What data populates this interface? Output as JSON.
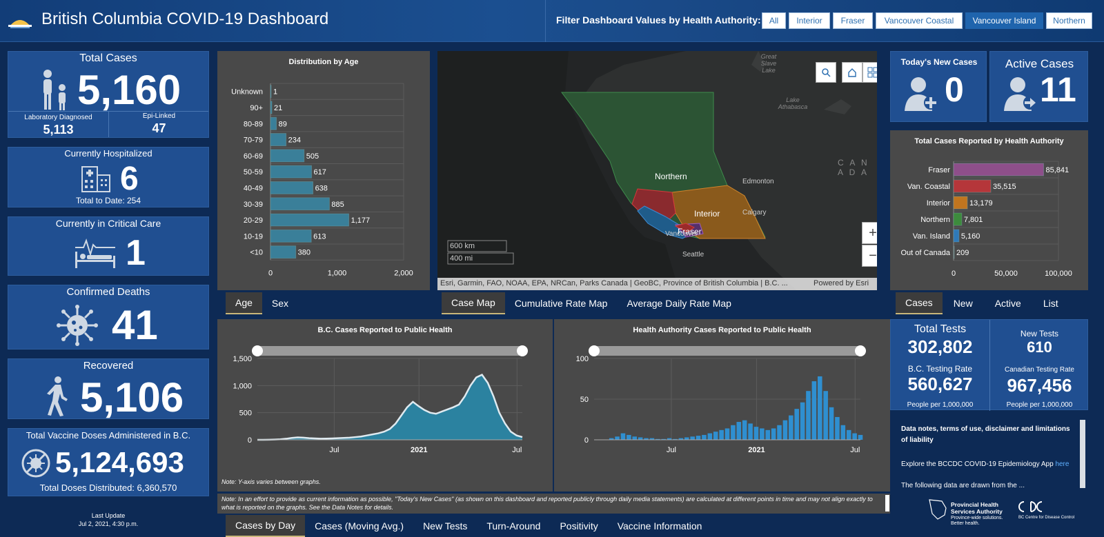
{
  "header": {
    "title": "British Columbia COVID-19 Dashboard",
    "filter_label": "Filter Dashboard Values by Health Authority:",
    "filters": [
      {
        "label": "All",
        "active": false
      },
      {
        "label": "Interior",
        "active": false
      },
      {
        "label": "Fraser",
        "active": false
      },
      {
        "label": "Vancouver Coastal",
        "active": false
      },
      {
        "label": "Vancouver Island",
        "active": true
      },
      {
        "label": "Northern",
        "active": false
      }
    ]
  },
  "left": {
    "total_cases": {
      "title": "Total Cases",
      "value": "5,160",
      "lab_label": "Laboratory Diagnosed",
      "lab_value": "5,113",
      "epi_label": "Epi-Linked",
      "epi_value": "47"
    },
    "hospitalized": {
      "title": "Currently Hospitalized",
      "value": "6",
      "sub": "Total to Date: 254"
    },
    "critical": {
      "title": "Currently in Critical Care",
      "value": "1"
    },
    "deaths": {
      "title": "Confirmed Deaths",
      "value": "41"
    },
    "recovered": {
      "title": "Recovered",
      "value": "5,106"
    },
    "vaccine": {
      "title": "Total Vaccine Doses Administered in B.C.",
      "value": "5,124,693",
      "sub": "Total Doses Distributed: 6,360,570"
    },
    "last_update_label": "Last Update",
    "last_update_value": "Jul 2, 2021, 4:30 p.m."
  },
  "age_chart": {
    "title": "Distribution by Age",
    "tabs": [
      "Age",
      "Sex"
    ],
    "active_tab": 0,
    "chart_data": {
      "type": "bar",
      "orientation": "horizontal",
      "categories": [
        "Unknown",
        "90+",
        "80-89",
        "70-79",
        "60-69",
        "50-59",
        "40-49",
        "30-39",
        "20-29",
        "10-19",
        "<10"
      ],
      "values": [
        1,
        21,
        89,
        234,
        505,
        617,
        638,
        885,
        1177,
        613,
        380
      ],
      "data_labels": [
        "1",
        "21",
        "89",
        "234",
        "505",
        "617",
        "638",
        "885",
        "1,177",
        "613",
        "380"
      ],
      "xlim": [
        0,
        2000
      ],
      "xticks": [
        "0",
        "1,000",
        "2,000"
      ]
    }
  },
  "map": {
    "labels": {
      "northern": "Northern",
      "interior": "Interior",
      "fraser": "Fraser",
      "vancouver": "Vancouver",
      "edmonton": "Edmonton",
      "calgary": "Calgary",
      "seattle": "Seattle",
      "canada": "C A N A D A",
      "great_slave": "Great Slave Lake",
      "athabasca": "Lake Athabasca"
    },
    "scale_km": "600 km",
    "scale_mi": "400 mi",
    "attribution": "Esri, Garmin, FAO, NOAA, EPA, NRCan, Parks Canada | GeoBC, Province of British Columbia | B.C. ...",
    "powered": "Powered by Esri",
    "tabs": [
      "Case Map",
      "Cumulative Rate Map",
      "Average Daily Rate Map"
    ],
    "active_tab": 0
  },
  "right": {
    "new_cases": {
      "title": "Today's New Cases",
      "value": "0"
    },
    "active_cases": {
      "title": "Active Cases",
      "value": "11"
    },
    "ha_chart": {
      "title": "Total Cases Reported by Health Authority",
      "tabs": [
        "Cases",
        "New",
        "Active",
        "List"
      ],
      "active_tab": 0,
      "chart_data": {
        "type": "bar",
        "orientation": "horizontal",
        "categories": [
          "Fraser",
          "Van. Coastal",
          "Interior",
          "Northern",
          "Van. Island",
          "Out of Canada"
        ],
        "values": [
          85841,
          35515,
          13179,
          7801,
          5160,
          209
        ],
        "data_labels": [
          "85,841",
          "35,515",
          "13,179",
          "7,801",
          "5,160",
          "209"
        ],
        "colors": [
          "#8e4f8a",
          "#b5363a",
          "#c0751f",
          "#3d8b3d",
          "#2f79b8",
          "#777777"
        ],
        "xlim": [
          0,
          100000
        ],
        "xticks": [
          "0",
          "50,000",
          "100,000"
        ]
      }
    },
    "tests": {
      "total_label": "Total Tests",
      "total_value": "302,802",
      "new_label": "New Tests",
      "new_value": "610",
      "bc_rate_label": "B.C. Testing Rate",
      "bc_rate_value": "560,627",
      "bc_rate_sub": "People per 1,000,000",
      "ca_rate_label": "Canadian Testing Rate",
      "ca_rate_value": "967,456",
      "ca_rate_sub": "People per 1,000,000"
    },
    "notes": {
      "title": "Data notes, terms of use, disclaimer and limitations of liability",
      "explore": "Explore the BCCDC COVID-19 Epidemiology App ",
      "explore_link": "here",
      "more": "The following data are drawn from the ..."
    },
    "logos": {
      "phsa": "Provincial Health Services Authority",
      "phsa_tag": "Province-wide solutions. Better health.",
      "bccdc": "BC Centre for Disease Control"
    }
  },
  "bc_chart": {
    "title": "B.C. Cases Reported to Public Health",
    "chart_data": {
      "type": "area",
      "x_ticks": [
        "Jul",
        "2021",
        "Jul"
      ],
      "ylim": [
        0,
        1500
      ],
      "yticks": [
        "0",
        "500",
        "1,000",
        "1,500"
      ],
      "series": [
        {
          "values": [
            0,
            0,
            2,
            5,
            10,
            20,
            35,
            45,
            40,
            30,
            25,
            20,
            22,
            25,
            30,
            35,
            40,
            50,
            60,
            80,
            100,
            120,
            150,
            200,
            300,
            450,
            600,
            700,
            620,
            550,
            500,
            480,
            520,
            560,
            600,
            650,
            800,
            1000,
            1150,
            1200,
            1050,
            800,
            500,
            300,
            150,
            80,
            50
          ]
        }
      ]
    }
  },
  "ha_cases_chart": {
    "title": "Health Authority Cases Reported to Public Health",
    "chart_data": {
      "type": "bar",
      "x_ticks": [
        "Jul",
        "2021",
        "Jul"
      ],
      "ylim": [
        0,
        100
      ],
      "yticks": [
        "0",
        "50",
        "100"
      ],
      "series": [
        {
          "values": [
            0,
            0,
            0,
            2,
            4,
            8,
            6,
            4,
            3,
            2,
            2,
            1,
            1,
            2,
            1,
            2,
            3,
            4,
            5,
            6,
            8,
            10,
            12,
            14,
            18,
            22,
            24,
            20,
            16,
            14,
            12,
            14,
            18,
            24,
            30,
            38,
            46,
            60,
            72,
            78,
            60,
            40,
            28,
            18,
            12,
            8,
            6
          ]
        }
      ]
    },
    "note_y": "Note: Y-axis varies between graphs."
  },
  "bottom": {
    "note": "Note: In an effort to provide as current information as possible, \"Today's New Cases\" (as shown on this dashboard and reported publicly through daily media statements) are calculated at different points in time and may not align exactly to what is reported on the graphs. See the Data Notes for details.",
    "tabs": [
      "Cases by Day",
      "Cases (Moving Avg.)",
      "New Tests",
      "Turn-Around",
      "Positivity",
      "Vaccine Information"
    ],
    "active_tab": 0
  },
  "colors": {
    "panel_blue": "#204f91",
    "bg": "#0d2a55",
    "dark_panel": "#494949",
    "age_bar": "#3a7f99",
    "area_fill": "#2b82a0"
  }
}
